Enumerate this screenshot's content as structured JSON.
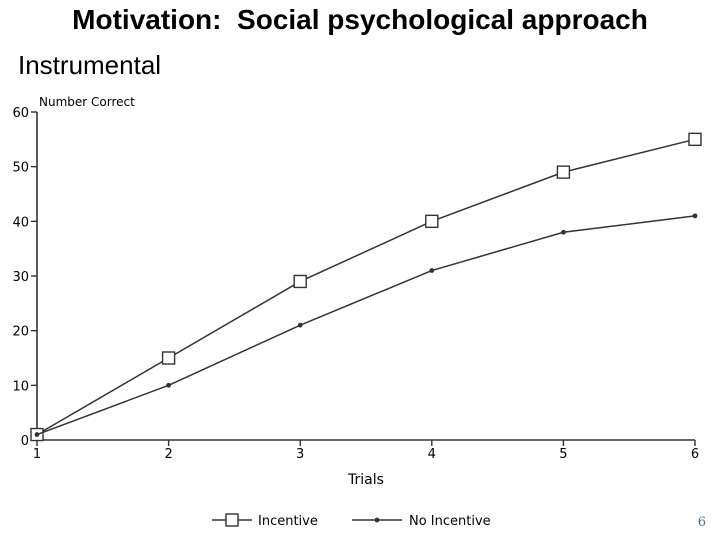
{
  "slide": {
    "title": "Motivation:  Social psychological approach",
    "subtitle": "Instrumental",
    "page_number": "6"
  },
  "chart_data": {
    "type": "line",
    "x": [
      1,
      2,
      3,
      4,
      5,
      6
    ],
    "xlabel": "Trials",
    "ylabel": "Number Correct",
    "xlim": [
      1,
      6
    ],
    "ylim": [
      0,
      60
    ],
    "yticks": [
      0,
      10,
      20,
      30,
      40,
      50,
      60
    ],
    "xticks": [
      1,
      2,
      3,
      4,
      5,
      6
    ],
    "grid": false,
    "legend_position": "bottom",
    "series": [
      {
        "name": "Incentive",
        "marker": "square",
        "values": [
          1,
          15,
          29,
          40,
          49,
          55
        ]
      },
      {
        "name": "No Incentive",
        "marker": "dot",
        "values": [
          1,
          10,
          21,
          31,
          38,
          41
        ]
      }
    ],
    "colors": {
      "line": "#333333"
    }
  }
}
